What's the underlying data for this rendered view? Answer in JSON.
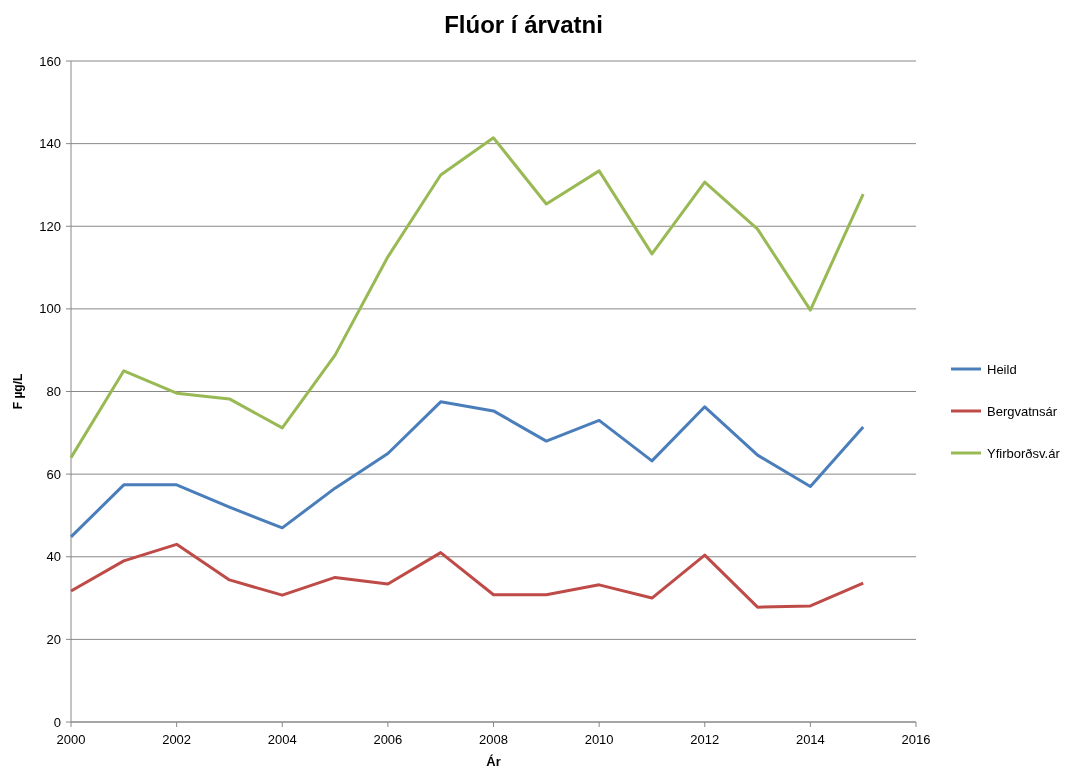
{
  "chart_data": {
    "type": "line",
    "title": "Flúor í árvatni",
    "xlabel": "Ár",
    "ylabel": "F µg/L",
    "x": [
      2000,
      2001,
      2002,
      2003,
      2004,
      2005,
      2006,
      2007,
      2008,
      2009,
      2010,
      2011,
      2012,
      2013,
      2014,
      2015
    ],
    "series": [
      {
        "name": "Heild",
        "color": "#4a7ebb",
        "values": [
          44.8,
          57.4,
          57.4,
          52,
          47,
          56.6,
          65,
          77.5,
          75.3,
          68,
          73,
          63.2,
          76.3,
          64.6,
          57,
          71.4
        ]
      },
      {
        "name": "Bergvatnsár",
        "color": "#be4b48",
        "values": [
          31.7,
          39,
          43,
          34.4,
          30.7,
          35,
          33.4,
          41,
          30.8,
          30.8,
          33.2,
          30,
          40.4,
          27.8,
          28.1,
          33.6
        ]
      },
      {
        "name": "Yfirborðsv.ár",
        "color": "#98b954",
        "values": [
          64,
          85,
          79.6,
          78.2,
          71.2,
          88.8,
          112.6,
          132.4,
          141.4,
          125.4,
          133.4,
          113.3,
          130.7,
          119.3,
          99.7,
          127.8
        ]
      }
    ],
    "xlim": [
      2000,
      2016
    ],
    "xticks": [
      2000,
      2002,
      2004,
      2006,
      2008,
      2010,
      2012,
      2014,
      2016
    ],
    "ylim": [
      0,
      160
    ],
    "yticks": [
      0,
      20,
      40,
      60,
      80,
      100,
      120,
      140,
      160
    ],
    "grid": "y",
    "legend": "right",
    "marker": "none",
    "line_style": "solid"
  }
}
